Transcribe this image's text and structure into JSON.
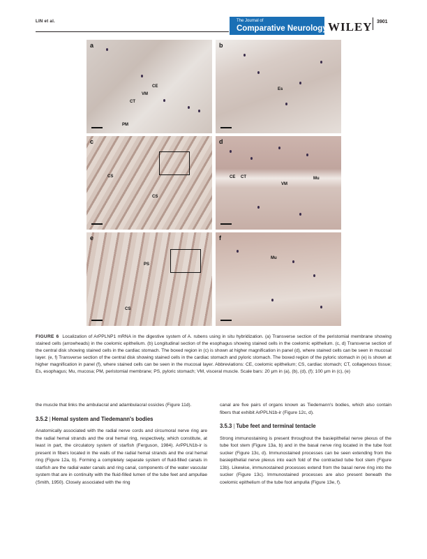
{
  "header": {
    "authors": "LIN et al.",
    "journal_line1": "The Journal of",
    "journal_line2": "Comparative Neurology",
    "publisher": "WILEY",
    "page_number": "3901"
  },
  "figure": {
    "panels": {
      "a": {
        "label": "a",
        "tissue_labels": [
          "CE",
          "VM",
          "CT",
          "PM"
        ]
      },
      "b": {
        "label": "b",
        "tissue_labels": [
          "Es"
        ]
      },
      "c": {
        "label": "c",
        "tissue_labels": [
          "CS",
          "CS"
        ]
      },
      "d": {
        "label": "d",
        "tissue_labels": [
          "CE",
          "CT",
          "VM",
          "Mu"
        ]
      },
      "e": {
        "label": "e",
        "tissue_labels": [
          "PS",
          "CS"
        ]
      },
      "f": {
        "label": "f",
        "tissue_labels": [
          "Mu"
        ]
      }
    },
    "caption_label": "FIGURE 6",
    "caption_text": "Localization of ArPPLNP1 mRNA in the digestive system of A. rubens using in situ hybridization. (a) Transverse section of the peristomial membrane showing stained cells (arrowheads) in the coelomic epithelium. (b) Longitudinal section of the esophagus showing stained cells in the coelomic epithelium. (c, d) Transverse section of the central disk showing stained cells in the cardiac stomach. The boxed region in (c) is shown at higher magnification in panel (d), where stained cells can be seen in mucosal layer. (e, f) Transverse section of the central disk showing stained cells in the cardiac stomach and pyloric stomach. The boxed region of the pyloric stomach in (e) is shown at higher magnification in panel (f), where stained cells can be seen in the mucosal layer. Abbreviations: CE, coelomic epithelium; CS, cardiac stomach; CT, collagenous tissue; Es, esophagus; Mu, mucosa; PM, peristomial membrane; PS, pyloric stomach; VM, visceral muscle. Scale bars: 20 μm in (a), (b), (d), (f); 100 μm in (c), (e)"
  },
  "body": {
    "left_intro": "the muscle that links the ambulacral and adambulacral ossicles (Figure 11d).",
    "section_352_number": "3.5.2",
    "section_352_title": "Hemal system and Tiedemann's bodies",
    "section_352_text": "Anatomically associated with the radial nerve cords and circumoral nerve ring are the radial hemal strands and the oral hemal ring, respectively, which constitute, at least in part, the circulatory system of starfish (Ferguson, 1984). ArPPLN1b-ir is present in fibers located in the walls of the radial hemal strands and the oral hemal ring (Figure 12a, b). Forming a completely separate system of fluid-filled canals in starfish are the radial water canals and ring canal, components of the water vascular system that are in continuity with the fluid-filled lumen of the tube feet and ampullae (Smith, 1950). Closely associated with the ring",
    "right_intro": "canal are five pairs of organs known as Tiedemann's bodies, which also contain fibers that exhibit ArPPLN1b-ir (Figure 12c, d).",
    "section_353_number": "3.5.3",
    "section_353_title": "Tube feet and terminal tentacle",
    "section_353_text": "Strong immunostaining is present throughout the basiepithelial nerve plexus of the tube foot stem (Figure 13a, b) and in the basal nerve ring located in the tube foot sucker (Figure 13c, d). Immunostained processes can be seen extending from the basiepithelial nerve plexus into each fold of the contracted tube foot stem (Figure 13b). Likewise, immunostained processes extend from the basal nerve ring into the sucker (Figure 13c). Immunostained processes are also present beneath the coelomic epithelium of the tube foot ampulla (Figure 13e, f)."
  }
}
